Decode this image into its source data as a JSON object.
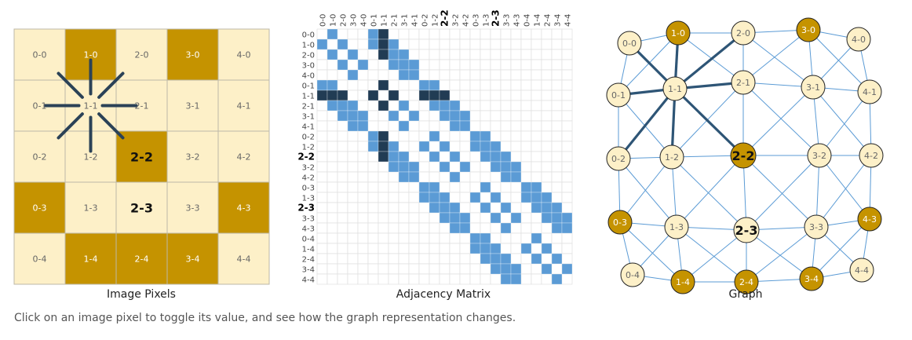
{
  "captions": {
    "pixels": "Image Pixels",
    "matrix": "Adjacency Matrix",
    "graph": "Graph"
  },
  "instructions": "Click on an image pixel to toggle its value, and see how the graph representation changes.",
  "grid_size": 5,
  "pixels_on": [
    "1-0",
    "3-0",
    "2-2",
    "0-3",
    "4-3",
    "1-4",
    "2-4",
    "3-4"
  ],
  "selected": "1-1",
  "emphasized": [
    "2-2",
    "2-3"
  ],
  "node_order": [
    "0-0",
    "1-0",
    "2-0",
    "3-0",
    "4-0",
    "0-1",
    "1-1",
    "2-1",
    "3-1",
    "4-1",
    "0-2",
    "1-2",
    "2-2",
    "3-2",
    "4-2",
    "0-3",
    "1-3",
    "2-3",
    "3-3",
    "4-3",
    "0-4",
    "1-4",
    "2-4",
    "3-4",
    "4-4"
  ],
  "matrix_bold_labels": [
    "2-2",
    "2-3"
  ],
  "colors": {
    "pixel_off": "#fdf0c8",
    "pixel_on": "#c59300",
    "grid_line": "#bdb8a8",
    "matrix_cell": "#5b9bd5",
    "matrix_selected": "#213c54",
    "matrix_grid": "#dddddd",
    "graph_edge": "#5b9bd5",
    "graph_selected_edge": "#2e5576",
    "node_stroke": "#222222",
    "text_off": "#666666",
    "text_on": "#ffffff"
  }
}
